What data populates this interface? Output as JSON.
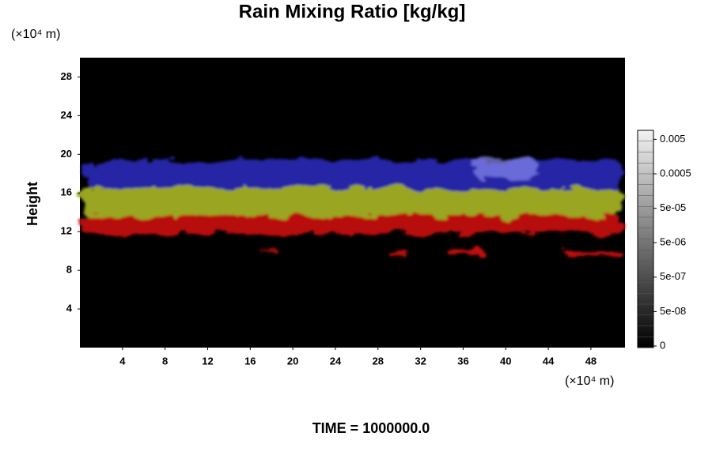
{
  "chart_data": {
    "type": "volume-render",
    "title": "Rain Mixing Ratio [kg/kg]",
    "ylabel": "Height",
    "y_unit": "(×10⁴ m)",
    "x_unit": "(×10⁴ m)",
    "footer": "TIME = 1000000.0",
    "xlim": [
      0,
      51.2
    ],
    "xticks": [
      4,
      8,
      12,
      16,
      20,
      24,
      28,
      32,
      36,
      40,
      44,
      48
    ],
    "ylim": [
      0,
      30
    ],
    "yticks": [
      4,
      8,
      12,
      16,
      20,
      24,
      28
    ],
    "colorbar": {
      "ticks": [
        {
          "value": 0,
          "label": "0"
        },
        {
          "value": 5e-08,
          "label": "5e-08"
        },
        {
          "value": 5e-07,
          "label": "5e-07"
        },
        {
          "value": 5e-06,
          "label": "5e-06"
        },
        {
          "value": 5e-05,
          "label": "5e-05"
        },
        {
          "value": 0.0005,
          "label": "0.0005"
        },
        {
          "value": 0.005,
          "label": "0.005"
        }
      ]
    }
  }
}
